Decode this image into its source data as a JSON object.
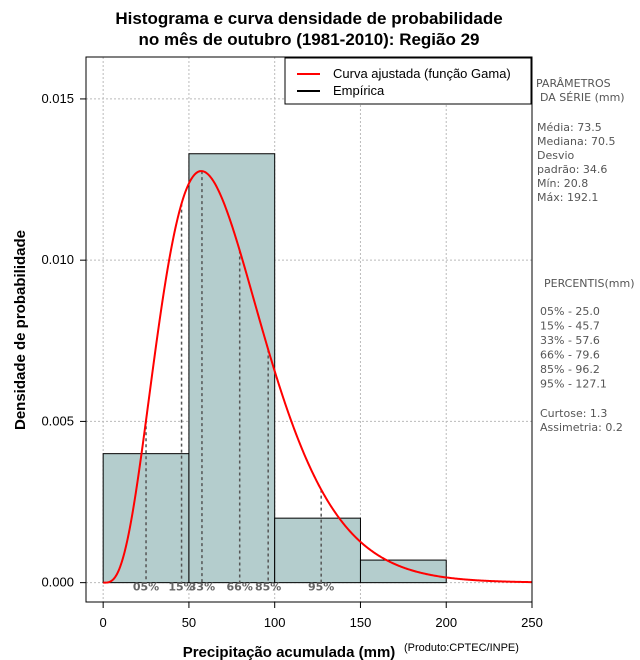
{
  "chart_data": {
    "type": "bar",
    "title": [
      "Histograma e curva densidade de probabilidade",
      "no mês de outubro (1981-2010): Região 29"
    ],
    "xlabel": "Precipitação acumulada (mm)",
    "xlabel_note": "(Produto:CPTEC/INPE)",
    "ylabel": "Densidade de probabilidade",
    "xlim": [
      -10,
      250
    ],
    "ylim": [
      -0.0006,
      0.0163
    ],
    "xticks": [
      0,
      50,
      100,
      150,
      200,
      250
    ],
    "yticks": [
      0.0,
      0.005,
      0.01,
      0.015
    ],
    "xtick_labels": [
      "0",
      "50",
      "100",
      "150",
      "200",
      "250"
    ],
    "ytick_labels": [
      "0.000",
      "0.005",
      "0.010",
      "0.015"
    ],
    "grid": true,
    "bins": [
      {
        "x0": 0,
        "x1": 50,
        "density": 0.004
      },
      {
        "x0": 50,
        "x1": 100,
        "density": 0.0133
      },
      {
        "x0": 100,
        "x1": 150,
        "density": 0.002
      },
      {
        "x0": 150,
        "x1": 200,
        "density": 0.0007
      }
    ],
    "fitted_curve": {
      "name": "Curva ajustada (função Gama)",
      "distribution": "gamma",
      "mean": 73.5,
      "sd": 34.6
    },
    "legend": [
      {
        "label": "Curva ajustada (função Gama)",
        "color": "#ff0000"
      },
      {
        "label": "Empírica",
        "color": "#000000"
      }
    ],
    "legend_position": "top-right",
    "percentile_markers": [
      {
        "label": "05%",
        "value": 25.0
      },
      {
        "label": "15%",
        "value": 45.7
      },
      {
        "label": "33%",
        "value": 57.6
      },
      {
        "label": "66%",
        "value": 79.6
      },
      {
        "label": "85%",
        "value": 96.2
      },
      {
        "label": "95%",
        "value": 127.1
      }
    ],
    "colors": {
      "bar_fill": "#b4cdcd",
      "curve": "#ff0000",
      "grid": "#bbbbbb",
      "marker": "#555555"
    }
  },
  "side_panel": {
    "params_title": [
      "PARÂMETROS",
      "DA SÉRIE (mm)"
    ],
    "params": [
      "Média:  73.5",
      "Mediana:  70.5",
      "Desvio",
      "padrão:  34.6",
      "Mín:  20.8",
      "Máx:  192.1"
    ],
    "percentiles_title": "PERCENTIS(mm)",
    "percentiles": [
      "05% -  25.0",
      "15% -  45.7",
      "33% -  57.6",
      "66% -  79.6",
      "85% -  96.2",
      "95% -  127.1"
    ],
    "stats": [
      "Curtose:  1.3",
      "Assimetria:  0.2"
    ]
  }
}
